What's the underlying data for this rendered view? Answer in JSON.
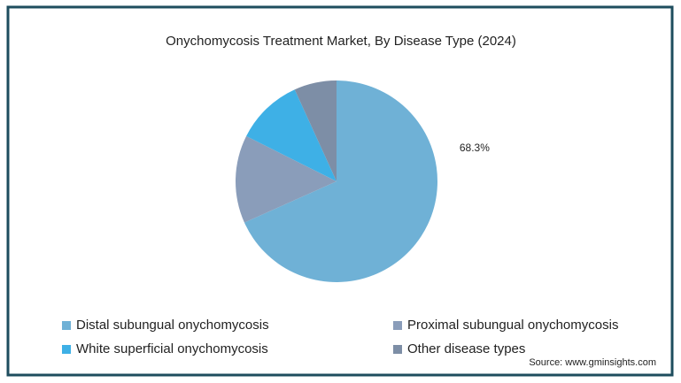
{
  "chart_data": {
    "type": "pie",
    "title": "Onychomycosis Treatment Market, By Disease Type (2024)",
    "categories": [
      "Distal subungual onychomycosis",
      "Proximal subungual onychomycosis",
      "White superficial onychomycosis",
      "Other disease types"
    ],
    "values": [
      68.3,
      14.1,
      10.8,
      6.8
    ],
    "value_labels": [
      "68.3%",
      null,
      null,
      null
    ],
    "colors": [
      "#6fb1d6",
      "#8a9dba",
      "#3eb0e6",
      "#7d8ea6"
    ],
    "source": "Source: www.gminsights.com"
  }
}
